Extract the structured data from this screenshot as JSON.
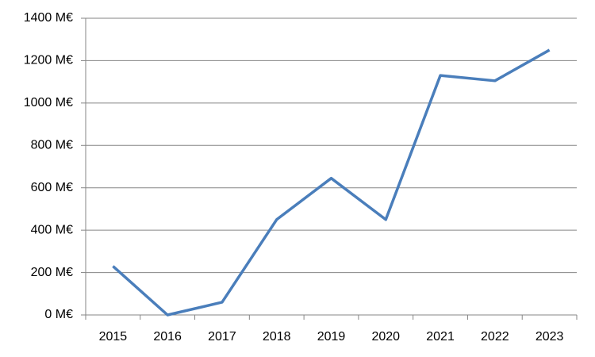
{
  "chart_data": {
    "type": "line",
    "categories": [
      "2015",
      "2016",
      "2017",
      "2018",
      "2019",
      "2020",
      "2021",
      "2022",
      "2023"
    ],
    "values": [
      230,
      0,
      60,
      450,
      645,
      450,
      1130,
      1105,
      1250
    ],
    "color": "#4a7ebb",
    "ylim": [
      0,
      1400
    ],
    "yticks": [
      {
        "value": 0,
        "label": "0 M€"
      },
      {
        "value": 200,
        "label": "200 M€"
      },
      {
        "value": 400,
        "label": "400 M€"
      },
      {
        "value": 600,
        "label": "600 M€"
      },
      {
        "value": 800,
        "label": "800 M€"
      },
      {
        "value": 1000,
        "label": "1000 M€"
      },
      {
        "value": 1200,
        "label": "1200 M€"
      },
      {
        "value": 1400,
        "label": "1400 M€"
      }
    ],
    "grid": true
  }
}
